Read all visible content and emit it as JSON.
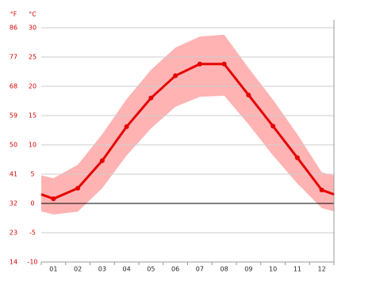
{
  "chart_data": {
    "type": "climate",
    "y_label": "°C",
    "y2_label": "°F",
    "categories": [
      "01",
      "02",
      "03",
      "04",
      "05",
      "06",
      "07",
      "08",
      "09",
      "10",
      "11",
      "12"
    ],
    "series": [
      {
        "color": "#e60000",
        "values": [
          0.8,
          2.6,
          7.3,
          13.1,
          18.0,
          21.8,
          23.8,
          23.8,
          18.5,
          13.2,
          7.8,
          2.3
        ]
      },
      {
        "color": "#ffb3b3",
        "values": [
          4.3,
          6.6,
          11.8,
          17.8,
          22.8,
          26.6,
          28.5,
          28.8,
          23.1,
          17.7,
          11.8,
          5.3
        ]
      },
      {
        "color": "#ffb3b3",
        "values": [
          -1.9,
          -1.4,
          2.6,
          8.2,
          12.8,
          16.5,
          18.2,
          18.4,
          13.5,
          8.2,
          3.4,
          -0.8
        ]
      }
    ],
    "ylim": [
      -10,
      30
    ],
    "yticks": [
      -10,
      -5,
      0,
      5,
      10,
      15,
      20,
      25,
      30
    ],
    "y2lim": [
      14,
      86
    ],
    "y2ticks": [
      14,
      23,
      32,
      41,
      50,
      59,
      68,
      77,
      86
    ],
    "grid": true
  }
}
